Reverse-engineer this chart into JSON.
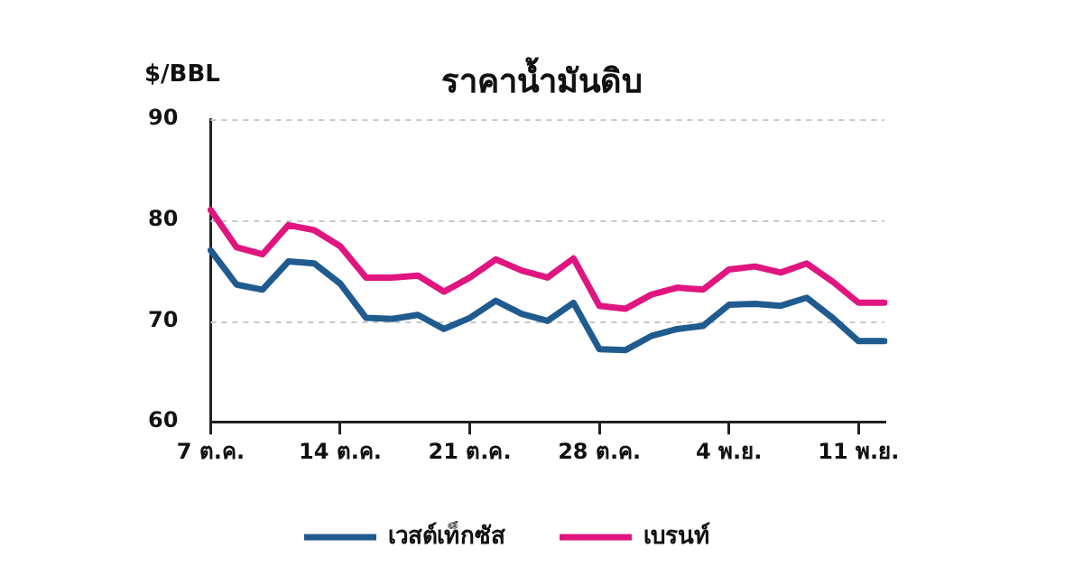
{
  "chart_data": {
    "type": "line",
    "title": "ราคาน้ำมันดิบ",
    "ylabel": "$/BBL",
    "categories": [
      "7 ต.ค.",
      null,
      null,
      null,
      null,
      "14 ต.ค.",
      null,
      null,
      null,
      null,
      "21 ต.ค.",
      null,
      null,
      null,
      null,
      "28 ต.ค.",
      null,
      null,
      null,
      null,
      "4 พ.ย.",
      null,
      null,
      null,
      null,
      "11 พ.ย.",
      null
    ],
    "ylim": [
      60,
      90
    ],
    "yticks": [
      60,
      70,
      80,
      90
    ],
    "grid": "y",
    "legend": "bottom",
    "marker": "none",
    "line_style": "solid",
    "series": [
      {
        "name": "เวสต์เท็กซัส",
        "color": "#1f5b8f",
        "values": [
          77,
          73.6,
          73.1,
          75.9,
          75.7,
          73.7,
          70.3,
          70.2,
          70.6,
          69.2,
          70.3,
          72,
          70.7,
          70,
          71.8,
          67.2,
          67.1,
          68.5,
          69.2,
          69.5,
          71.6,
          71.7,
          71.5,
          72.3,
          70.3,
          68,
          68
        ]
      },
      {
        "name": "เบรนท์",
        "color": "#e0157f",
        "values": [
          81,
          77.3,
          76.6,
          79.5,
          79,
          77.4,
          74.3,
          74.3,
          74.5,
          72.9,
          74.3,
          76.1,
          75,
          74.3,
          76.2,
          71.5,
          71.2,
          72.6,
          73.3,
          73.1,
          75.1,
          75.4,
          74.8,
          75.7,
          73.9,
          71.8,
          71.8
        ]
      }
    ]
  }
}
